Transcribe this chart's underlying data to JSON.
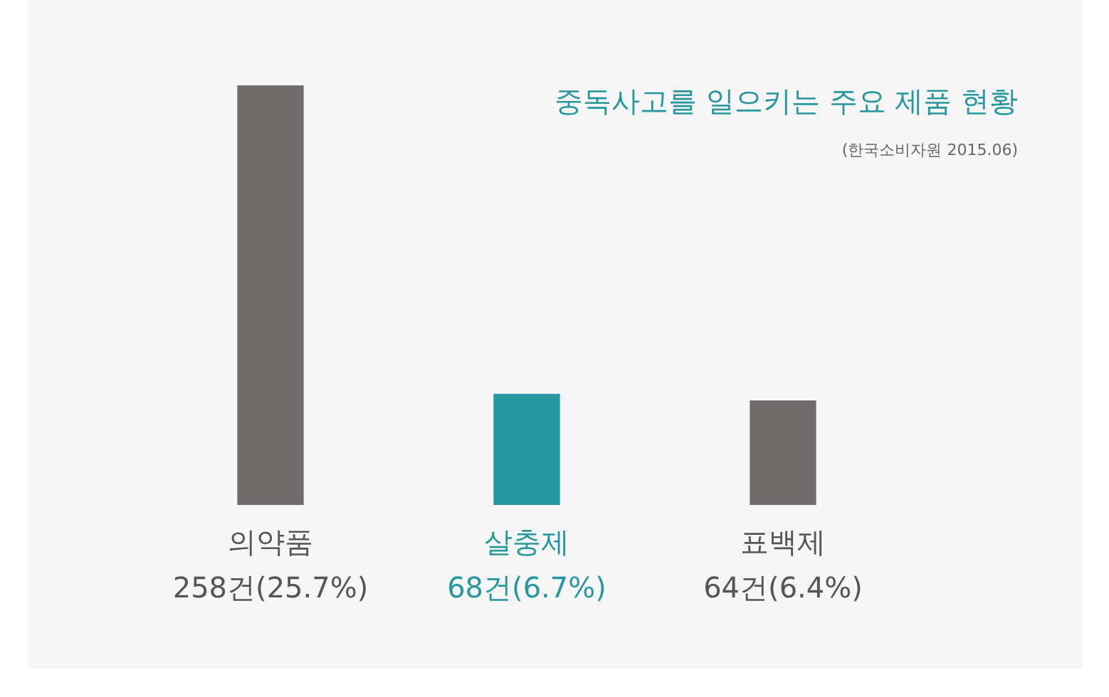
{
  "chart_data": {
    "type": "bar",
    "title": "중독사고를 일으키는 주요 제품 현황",
    "subtitle": "(한국소비자원 2015.06)",
    "categories": [
      "의약품",
      "살충제",
      "표백제"
    ],
    "values": [
      258,
      68,
      64
    ],
    "colors": [
      "#716c6c",
      "#27979f",
      "#716c6c"
    ],
    "value_labels": [
      "258건(25.7%)",
      "68건(6.7%)",
      "64건(6.4%)"
    ],
    "legend": false
  }
}
